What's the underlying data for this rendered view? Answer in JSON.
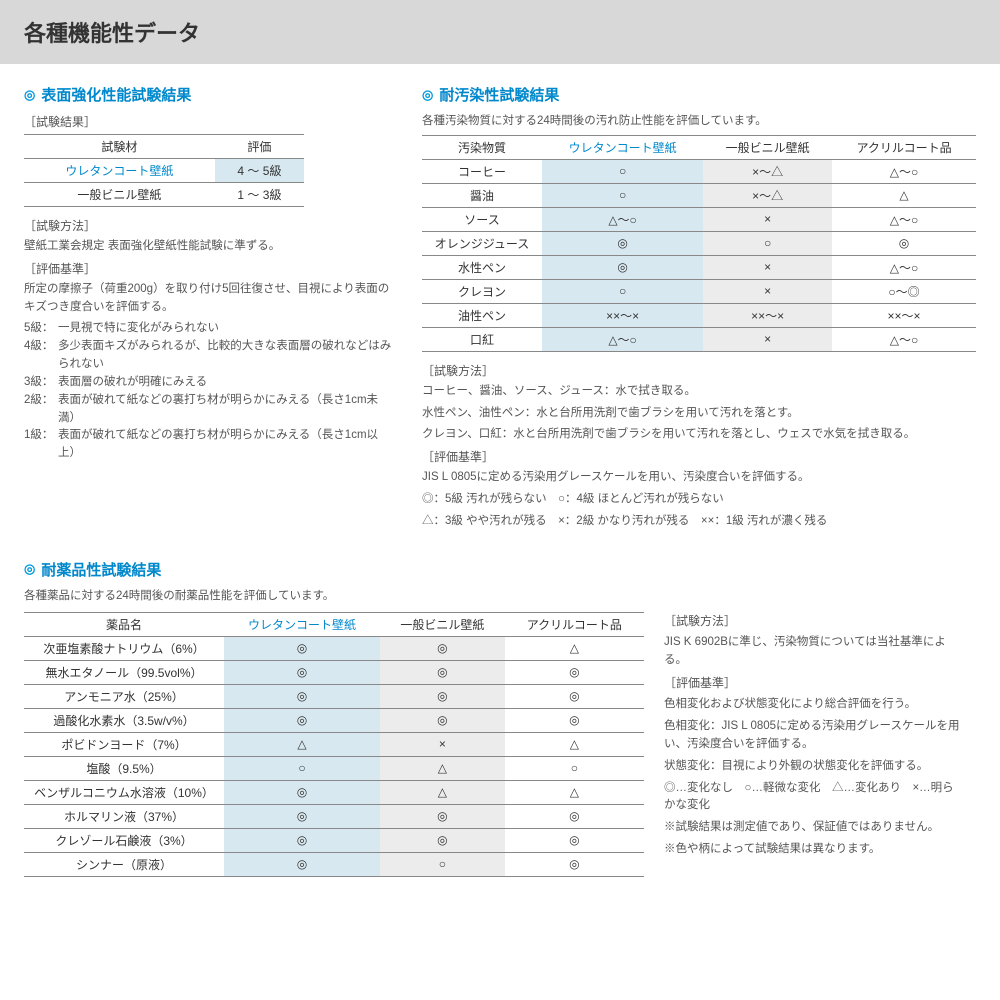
{
  "header": {
    "title": "各種機能性データ"
  },
  "s1": {
    "title": "表面強化性能試験結果",
    "label_result": "［試験結果］",
    "th_material": "試験材",
    "th_eval": "評価",
    "rows": [
      {
        "m": "ウレタンコート壁紙",
        "v": "4 ～ 5級",
        "hl": true
      },
      {
        "m": "一般ビニル壁紙",
        "v": "1 ～ 3級",
        "hl": false
      }
    ],
    "label_method": "［試験方法］",
    "method": "壁紙工業会規定 表面強化壁紙性能試験に準ずる。",
    "label_criteria": "［評価基準］",
    "criteria": "所定の摩擦子（荷重200g）を取り付け5回往復させ、目視により表面のキズつき度合いを評価する。",
    "grades": [
      {
        "g": "5級：",
        "t": "一見視で特に変化がみられない"
      },
      {
        "g": "4級：",
        "t": "多少表面キズがみられるが、比較的大きな表面層の破れなどはみられない"
      },
      {
        "g": "3級：",
        "t": "表面層の破れが明確にみえる"
      },
      {
        "g": "2級：",
        "t": "表面が破れて紙などの裏打ち材が明らかにみえる（長さ1cm未満）"
      },
      {
        "g": "1級：",
        "t": "表面が破れて紙などの裏打ち材が明らかにみえる（長さ1cm以上）"
      }
    ]
  },
  "s2": {
    "title": "耐汚染性試験結果",
    "desc": "各種汚染物質に対する24時間後の汚れ防止性能を評価しています。",
    "cols": [
      "汚染物質",
      "ウレタンコート壁紙",
      "一般ビニル壁紙",
      "アクリルコート品"
    ],
    "rows": [
      [
        "コーヒー",
        "○",
        "×～△",
        "△～○"
      ],
      [
        "醤油",
        "○",
        "×～△",
        "△"
      ],
      [
        "ソース",
        "△～○",
        "×",
        "△～○"
      ],
      [
        "オレンジジュース",
        "◎",
        "○",
        "◎"
      ],
      [
        "水性ペン",
        "◎",
        "×",
        "△～○"
      ],
      [
        "クレヨン",
        "○",
        "×",
        "○～◎"
      ],
      [
        "油性ペン",
        "××～×",
        "××～×",
        "××～×"
      ],
      [
        "口紅",
        "△～○",
        "×",
        "△～○"
      ]
    ],
    "label_method": "［試験方法］",
    "method1": "コーヒー、醤油、ソース、ジュース：水で拭き取る。",
    "method2": "水性ペン、油性ペン：水と台所用洗剤で歯ブラシを用いて汚れを落とす。",
    "method3": "クレヨン、口紅：水と台所用洗剤で歯ブラシを用いて汚れを落とし、ウェスで水気を拭き取る。",
    "label_criteria": "［評価基準］",
    "criteria": "JIS L 0805に定める汚染用グレースケールを用い、汚染度合いを評価する。",
    "legend1": "◎：5級 汚れが残らない　○：4級 ほとんど汚れが残らない",
    "legend2": "△：3級 やや汚れが残る　×：2級 かなり汚れが残る　××：1級 汚れが濃く残る"
  },
  "s3": {
    "title": "耐薬品性試験結果",
    "desc": "各種薬品に対する24時間後の耐薬品性能を評価しています。",
    "cols": [
      "薬品名",
      "ウレタンコート壁紙",
      "一般ビニル壁紙",
      "アクリルコート品"
    ],
    "rows": [
      [
        "次亜塩素酸ナトリウム（6%）",
        "◎",
        "◎",
        "△"
      ],
      [
        "無水エタノール（99.5vol%）",
        "◎",
        "◎",
        "◎"
      ],
      [
        "アンモニア水（25%）",
        "◎",
        "◎",
        "◎"
      ],
      [
        "過酸化水素水（3.5w/v%）",
        "◎",
        "◎",
        "◎"
      ],
      [
        "ポビドンヨード（7%）",
        "△",
        "×",
        "△"
      ],
      [
        "塩酸（9.5%）",
        "○",
        "△",
        "○"
      ],
      [
        "ベンザルコニウム水溶液（10%）",
        "◎",
        "△",
        "△"
      ],
      [
        "ホルマリン液（37%）",
        "◎",
        "◎",
        "◎"
      ],
      [
        "クレゾール石鹸液（3%）",
        "◎",
        "◎",
        "◎"
      ],
      [
        "シンナー（原液）",
        "◎",
        "○",
        "◎"
      ]
    ],
    "notes": {
      "label_method": "［試験方法］",
      "method": "JIS K 6902Bに準じ、汚染物質については当社基準による。",
      "label_criteria": "［評価基準］",
      "c1": "色相変化および状態変化により総合評価を行う。",
      "c2": "色相変化：JIS L 0805に定める汚染用グレースケールを用い、汚染度合いを評価する。",
      "c3": "状態変化：目視により外観の状態変化を評価する。",
      "legend": "◎…変化なし　○…軽微な変化　△…変化あり　×…明らかな変化",
      "n1": "※試験結果は測定値であり、保証値ではありません。",
      "n2": "※色や柄によって試験結果は異なります。"
    }
  }
}
